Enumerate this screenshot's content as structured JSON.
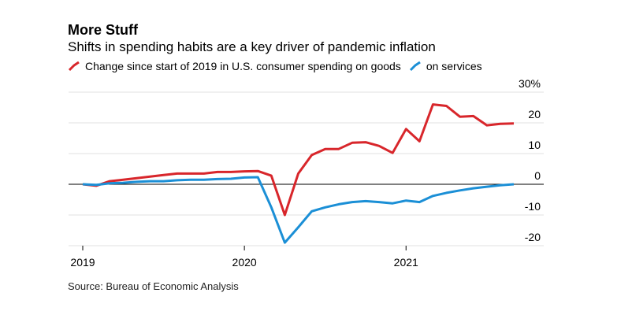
{
  "title": "More Stuff",
  "subtitle": "Shifts in spending habits are a key driver of pandemic inflation",
  "source": "Source: Bureau of Economic Analysis",
  "colors": {
    "goods": "#d8262b",
    "services": "#1b8fd6",
    "grid": "#e2e2e2",
    "zero": "#000000"
  },
  "chart_data": {
    "type": "line",
    "ylim": [
      -20,
      30
    ],
    "yticks": [
      {
        "value": 30,
        "label": "30%"
      },
      {
        "value": 20,
        "label": "20"
      },
      {
        "value": 10,
        "label": "10"
      },
      {
        "value": 0,
        "label": "0"
      },
      {
        "value": -10,
        "label": "-10"
      },
      {
        "value": -20,
        "label": "-20"
      }
    ],
    "xticks": [
      {
        "value": "2019-01",
        "label": "2019"
      },
      {
        "value": "2020-01",
        "label": "2020"
      },
      {
        "value": "2021-01",
        "label": "2021"
      }
    ],
    "x": [
      "2019-01",
      "2019-02",
      "2019-03",
      "2019-04",
      "2019-05",
      "2019-06",
      "2019-07",
      "2019-08",
      "2019-09",
      "2019-10",
      "2019-11",
      "2019-12",
      "2020-01",
      "2020-02",
      "2020-03",
      "2020-04",
      "2020-05",
      "2020-06",
      "2020-07",
      "2020-08",
      "2020-09",
      "2020-10",
      "2020-11",
      "2020-12",
      "2021-01",
      "2021-02",
      "2021-03",
      "2021-04",
      "2021-05",
      "2021-06",
      "2021-07",
      "2021-08",
      "2021-09"
    ],
    "series": [
      {
        "name": "Change since start of 2019 in U.S. consumer spending on goods",
        "key": "goods",
        "values": [
          0,
          -0.5,
          1,
          1.5,
          2,
          2.5,
          3,
          3.5,
          3.5,
          3.5,
          4,
          4,
          4.2,
          4.3,
          2.8,
          -10,
          3.5,
          9.5,
          11.5,
          11.5,
          13.5,
          13.7,
          12.5,
          10.2,
          18,
          14,
          26,
          25.5,
          22,
          22.2,
          19.2,
          19.7,
          19.8
        ]
      },
      {
        "name": "on services",
        "key": "services",
        "values": [
          0,
          -0.2,
          0.3,
          0.5,
          0.8,
          1,
          1,
          1.3,
          1.5,
          1.5,
          1.7,
          1.8,
          2.2,
          2.3,
          -7.5,
          -19,
          -14,
          -8.8,
          -7.5,
          -6.5,
          -5.8,
          -5.5,
          -5.8,
          -6.2,
          -5.3,
          -5.8,
          -3.8,
          -2.8,
          -2,
          -1.3,
          -0.8,
          -0.3,
          0
        ]
      }
    ]
  }
}
